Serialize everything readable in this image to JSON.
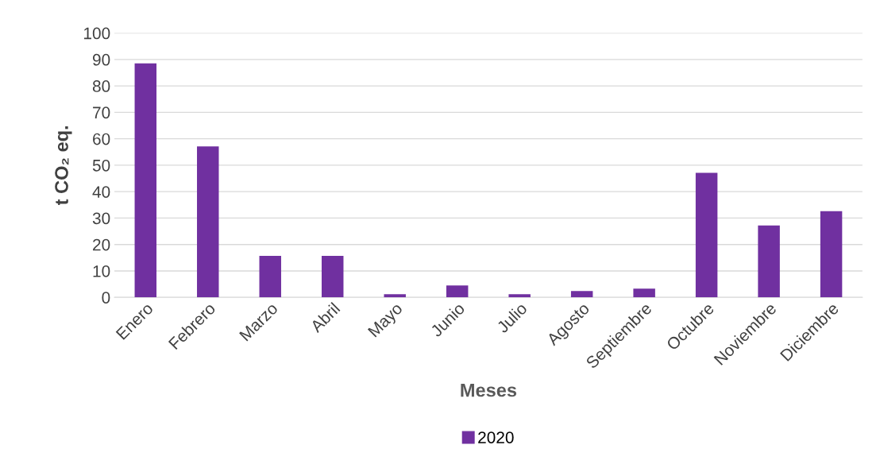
{
  "chart_data": {
    "type": "bar",
    "xlabel": "Meses",
    "ylabel": "t CO₂ eq.",
    "categories": [
      "Enero",
      "Febrero",
      "Marzo",
      "Abril",
      "Mayo",
      "Junio",
      "Julio",
      "Agosto",
      "Septiembre",
      "Octubre",
      "Noviembre",
      "Diciembre"
    ],
    "series": [
      {
        "name": "2020",
        "color": "#7030a0",
        "values": [
          88.5,
          57.1,
          15.7,
          15.7,
          1.2,
          4.5,
          1.2,
          2.4,
          3.3,
          47.1,
          27.2,
          32.6
        ]
      }
    ],
    "ylim": [
      0,
      100
    ],
    "yticks": [
      0,
      10,
      20,
      30,
      40,
      50,
      60,
      70,
      80,
      90,
      100
    ],
    "grid": "y",
    "legend": "bottom"
  }
}
